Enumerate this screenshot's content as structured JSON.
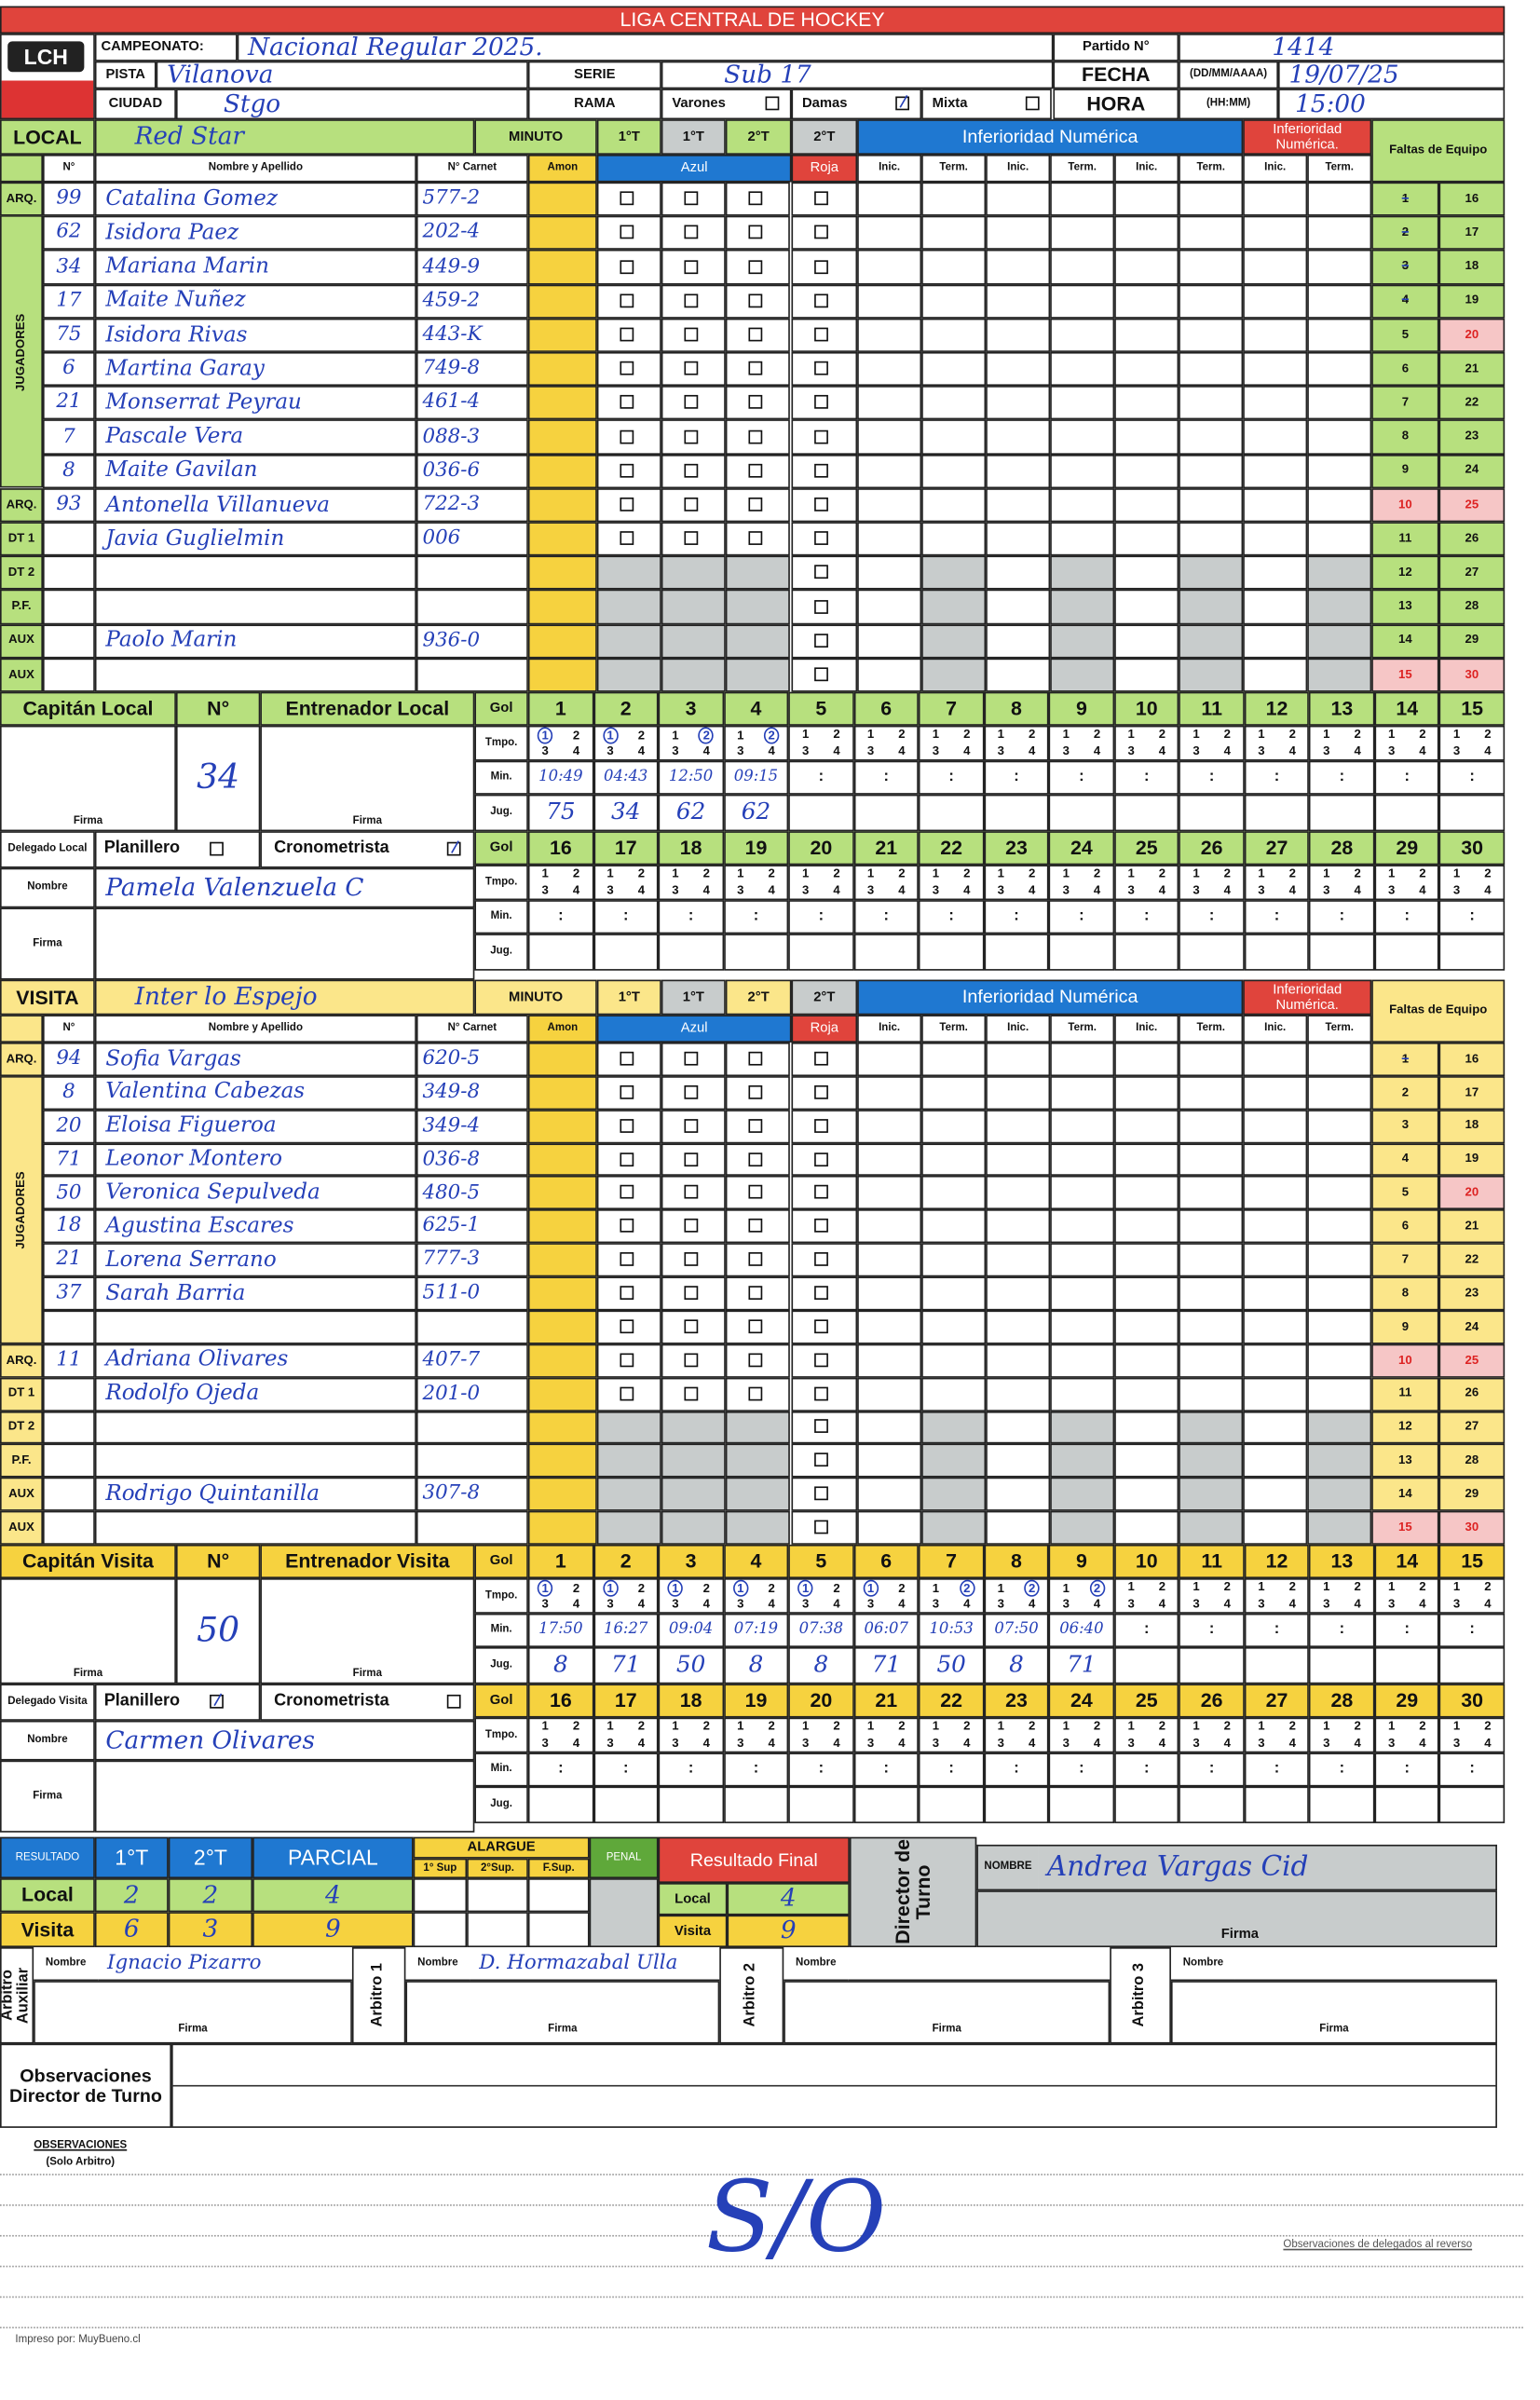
{
  "header": {
    "title": "LIGA CENTRAL DE HOCKEY",
    "logo": "LCH",
    "campeonato_label": "CAMPEONATO:",
    "campeonato": "Nacional Regular 2025.",
    "partido_label": "Partido N°",
    "partido": "1414",
    "pista_label": "PISTA",
    "pista": "Vilanova",
    "serie_label": "SERIE",
    "serie": "Sub 17",
    "fecha_label": "FECHA",
    "fecha_format": "(DD/MM/AAAA)",
    "fecha": "19/07/25",
    "ciudad_label": "CIUDAD",
    "ciudad": "Stgo",
    "rama_label": "RAMA",
    "rama_options": [
      {
        "label": "Varones",
        "checked": false
      },
      {
        "label": "Damas",
        "checked": true
      },
      {
        "label": "Mixta",
        "checked": false
      }
    ],
    "hora_label": "HORA",
    "hora_format": "(HH:MM)",
    "hora": "15:00"
  },
  "labels": {
    "no": "N°",
    "name": "Nombre y Apellido",
    "carnet": "N° Carnet",
    "amon": "Amon",
    "azul": "Azul",
    "roja": "Roja",
    "inic": "Inic.",
    "term": "Term.",
    "minuto": "MINUTO",
    "periods": [
      "1°T",
      "1°T",
      "2°T",
      "2°T"
    ],
    "inf": "Inferioridad Numérica",
    "inf_red": "Inferioridad Numérica.",
    "faltas": "Faltas de Equipo",
    "jugadores": "JUGADORES",
    "gol": "Gol",
    "tmpo": "Tmpo.",
    "min": "Min.",
    "jug": "Jug.",
    "firma": "Firma",
    "nombre": "Nombre",
    "planillero": "Planillero",
    "cronometrista": "Cronometrista",
    "tmpo_digits": [
      "1",
      "2",
      "3",
      "4"
    ]
  },
  "teams": [
    {
      "label": "LOCAL",
      "team": "Red Star",
      "captain_label": "Capitán Local",
      "coach_label": "Entrenador Local",
      "delegado_label": "Delegado Local",
      "captain_number": "34",
      "planillero_checked": false,
      "cronometrista_checked": true,
      "delegado_nombre": "Pamela Valenzuela C",
      "fouls_marked": 4,
      "players": [
        {
          "role": "ARQ.",
          "num": "99",
          "name": "Catalina Gomez",
          "carnet": "577-2"
        },
        {
          "role": "",
          "num": "62",
          "name": "Isidora Paez",
          "carnet": "202-4"
        },
        {
          "role": "",
          "num": "34",
          "name": "Mariana Marin",
          "carnet": "449-9"
        },
        {
          "role": "",
          "num": "17",
          "name": "Maite Nuñez",
          "carnet": "459-2"
        },
        {
          "role": "",
          "num": "75",
          "name": "Isidora Rivas",
          "carnet": "443-K"
        },
        {
          "role": "",
          "num": "6",
          "name": "Martina Garay",
          "carnet": "749-8"
        },
        {
          "role": "",
          "num": "21",
          "name": "Monserrat Peyrau",
          "carnet": "461-4"
        },
        {
          "role": "",
          "num": "7",
          "name": "Pascale Vera",
          "carnet": "088-3"
        },
        {
          "role": "",
          "num": "8",
          "name": "Maite Gavilan",
          "carnet": "036-6"
        },
        {
          "role": "ARQ.",
          "num": "93",
          "name": "Antonella Villanueva",
          "carnet": "722-3"
        },
        {
          "role": "DT 1",
          "num": "",
          "name": "Javia Guglielmin",
          "carnet": "006"
        },
        {
          "role": "DT 2",
          "num": "",
          "name": "",
          "carnet": ""
        },
        {
          "role": "P.F.",
          "num": "",
          "name": "",
          "carnet": ""
        },
        {
          "role": "AUX",
          "num": "",
          "name": "Paolo Marin",
          "carnet": "936-0"
        },
        {
          "role": "AUX",
          "num": "",
          "name": "",
          "carnet": ""
        }
      ],
      "goals": [
        {
          "tmpo": "1",
          "min": "10:49",
          "jug": "75"
        },
        {
          "tmpo": "1",
          "min": "04:43",
          "jug": "34"
        },
        {
          "tmpo": "2",
          "min": "12:50",
          "jug": "62"
        },
        {
          "tmpo": "2",
          "min": "09:15",
          "jug": "62"
        }
      ]
    },
    {
      "label": "VISITA",
      "team": "Inter lo Espejo",
      "captain_label": "Capitán Visita",
      "coach_label": "Entrenador Visita",
      "delegado_label": "Delegado Visita",
      "captain_number": "50",
      "planillero_checked": true,
      "cronometrista_checked": false,
      "delegado_nombre": "Carmen Olivares",
      "fouls_marked": 1,
      "players": [
        {
          "role": "ARQ.",
          "num": "94",
          "name": "Sofia Vargas",
          "carnet": "620-5"
        },
        {
          "role": "",
          "num": "8",
          "name": "Valentina Cabezas",
          "carnet": "349-8"
        },
        {
          "role": "",
          "num": "20",
          "name": "Eloisa Figueroa",
          "carnet": "349-4"
        },
        {
          "role": "",
          "num": "71",
          "name": "Leonor Montero",
          "carnet": "036-8"
        },
        {
          "role": "",
          "num": "50",
          "name": "Veronica Sepulveda",
          "carnet": "480-5"
        },
        {
          "role": "",
          "num": "18",
          "name": "Agustina Escares",
          "carnet": "625-1"
        },
        {
          "role": "",
          "num": "21",
          "name": "Lorena Serrano",
          "carnet": "777-3"
        },
        {
          "role": "",
          "num": "37",
          "name": "Sarah Barria",
          "carnet": "511-0"
        },
        {
          "role": "",
          "num": "",
          "name": "",
          "carnet": ""
        },
        {
          "role": "ARQ.",
          "num": "11",
          "name": "Adriana Olivares",
          "carnet": "407-7"
        },
        {
          "role": "DT 1",
          "num": "",
          "name": "Rodolfo Ojeda",
          "carnet": "201-0"
        },
        {
          "role": "DT 2",
          "num": "",
          "name": "",
          "carnet": ""
        },
        {
          "role": "P.F.",
          "num": "",
          "name": "",
          "carnet": ""
        },
        {
          "role": "AUX",
          "num": "",
          "name": "Rodrigo Quintanilla",
          "carnet": "307-8"
        },
        {
          "role": "AUX",
          "num": "",
          "name": "",
          "carnet": ""
        }
      ],
      "goals": [
        {
          "tmpo": "1",
          "min": "17:50",
          "jug": "8"
        },
        {
          "tmpo": "1",
          "min": "16:27",
          "jug": "71"
        },
        {
          "tmpo": "1",
          "min": "09:04",
          "jug": "50"
        },
        {
          "tmpo": "1",
          "min": "07:19",
          "jug": "8"
        },
        {
          "tmpo": "1",
          "min": "07:38",
          "jug": "8"
        },
        {
          "tmpo": "1",
          "min": "06:07",
          "jug": "71"
        },
        {
          "tmpo": "2",
          "min": "10:53",
          "jug": "50"
        },
        {
          "tmpo": "2",
          "min": "07:50",
          "jug": "8"
        },
        {
          "tmpo": "2",
          "min": "06:40",
          "jug": "71"
        }
      ]
    }
  ],
  "results": {
    "label": "RESULTADO",
    "cols": [
      "1°T",
      "2°T",
      "PARCIAL"
    ],
    "local_label": "Local",
    "visita_label": "Visita",
    "local": [
      "2",
      "2",
      "4"
    ],
    "visita": [
      "6",
      "3",
      "9"
    ],
    "alargue_label": "ALARGUE",
    "alargue_cols": [
      "1° Sup",
      "2°Sup.",
      "F.Sup."
    ],
    "penal_label": "PENAL",
    "final_label": "Resultado Final",
    "final_local": "4",
    "final_visita": "9",
    "director_label": "Director de Turno",
    "director_nombre_label": "NOMBRE",
    "director_nombre": "Andrea Vargas Cid",
    "firma": "Firma"
  },
  "referees": [
    {
      "label": "Arbitro Auxiliar",
      "nombre": "Ignacio Pizarro"
    },
    {
      "label": "Arbitro 1",
      "nombre": "D. Hormazabal Ulla"
    },
    {
      "label": "Arbitro 2",
      "nombre": ""
    },
    {
      "label": "Arbitro 3",
      "nombre": ""
    }
  ],
  "observaciones_director_label": "Observaciones Director de Turno",
  "observaciones_label": "OBSERVACIONES",
  "observaciones_sub": "(Solo Arbitro)",
  "observaciones_text": "S/O",
  "reverso_note": "Observaciones de delegados al reverso",
  "printed_by": "Impreso por: MuyBueno.cl",
  "colors": {
    "red": "#e0443c",
    "blue": "#1f78d1",
    "green": "#b7e07e",
    "yellow": "#f6d23f",
    "ink": "#2540b8"
  }
}
